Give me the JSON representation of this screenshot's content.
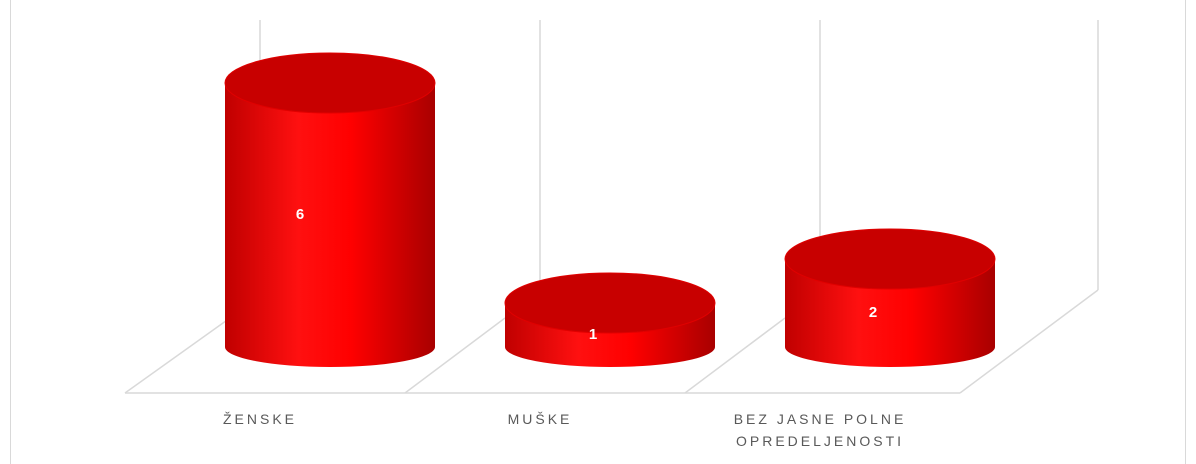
{
  "chart_data": {
    "type": "cylinder",
    "categories": [
      "ŽENSKE",
      "MUŠKE",
      "BEZ JASNE POLNE OPREDELJENOSTI"
    ],
    "values": [
      6,
      1,
      2
    ],
    "color": "#ff0000"
  }
}
